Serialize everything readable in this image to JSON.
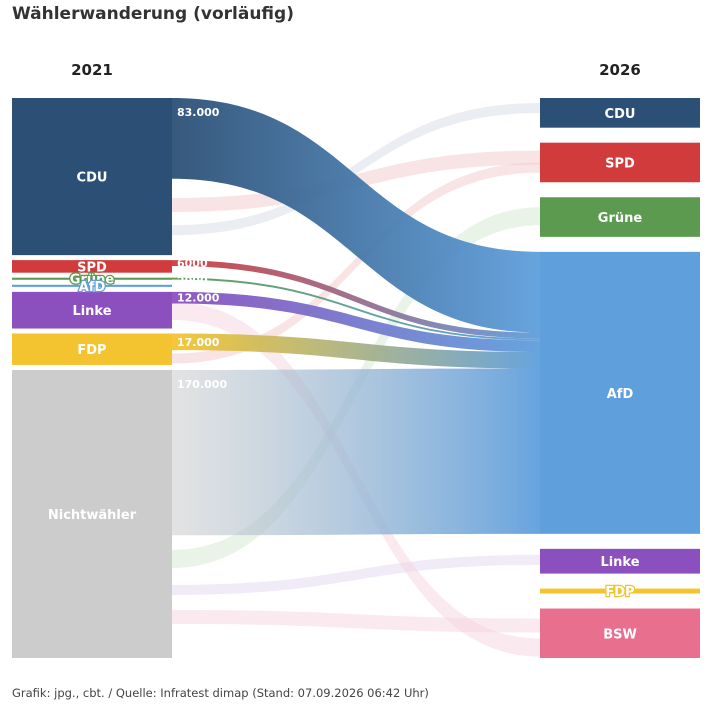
{
  "title": "Wählerwanderung (vorläufig)",
  "footer": "Grafik: jpg., cbt. / Quelle: Infratest dimap (Stand: 07.09.2026 06:42 Uhr)",
  "chart_data": {
    "type": "sankey",
    "left_year": "2021",
    "right_year": "2026",
    "left_nodes": [
      {
        "id": "CDU",
        "label": "CDU",
        "color": "#2c5075",
        "value": 150
      },
      {
        "id": "SPD",
        "label": "SPD",
        "color": "#d13b3b",
        "value": 12
      },
      {
        "id": "Grüne",
        "label": "Grüne",
        "color": "#5b9a4f",
        "value": 2
      },
      {
        "id": "AfD",
        "label": "AfD",
        "color": "#5f9fdc",
        "value": 2
      },
      {
        "id": "Linke",
        "label": "Linke",
        "color": "#8c50be",
        "value": 35
      },
      {
        "id": "FDP",
        "label": "FDP",
        "color": "#f4c430",
        "value": 30
      },
      {
        "id": "Nichtwähler",
        "label": "Nichtwähler",
        "color": "#cccccc",
        "value": 275
      }
    ],
    "right_nodes": [
      {
        "id": "CDU",
        "label": "CDU",
        "color": "#2c5075",
        "value": 30
      },
      {
        "id": "SPD",
        "label": "SPD",
        "color": "#d13b3b",
        "value": 40
      },
      {
        "id": "Grüne",
        "label": "Grüne",
        "color": "#5b9a4f",
        "value": 40
      },
      {
        "id": "AfD",
        "label": "AfD",
        "color": "#5f9fdc",
        "value": 285
      },
      {
        "id": "Linke",
        "label": "Linke",
        "color": "#8c50be",
        "value": 25
      },
      {
        "id": "FDP",
        "label": "FDP",
        "color": "#f4c430",
        "value": 5
      },
      {
        "id": "BSW",
        "label": "BSW",
        "color": "#e8708e",
        "value": 50
      }
    ],
    "flows_to_afd": [
      {
        "from": "CDU",
        "value": 83000,
        "label": "83.000"
      },
      {
        "from": "SPD",
        "value": 6000,
        "label": "6000"
      },
      {
        "from": "Grüne",
        "value": 2000,
        "label": "2000"
      },
      {
        "from": "Linke",
        "value": 12000,
        "label": "12.000"
      },
      {
        "from": "FDP",
        "value": 17000,
        "label": "17.000"
      },
      {
        "from": "Nichtwähler",
        "value": 170000,
        "label": "170.000"
      }
    ]
  }
}
